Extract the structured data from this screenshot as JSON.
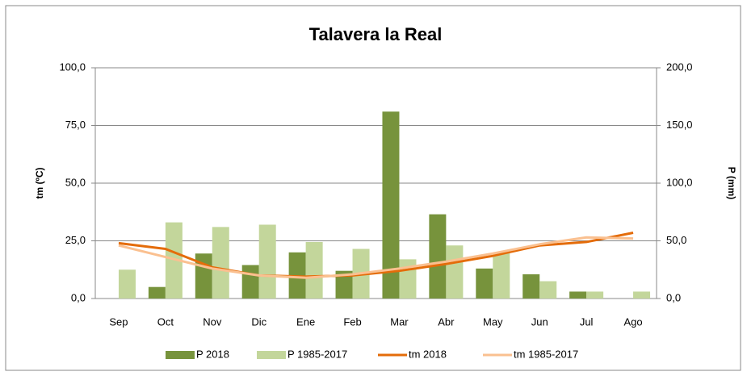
{
  "chart_data": {
    "type": "bar_line",
    "title": "Talavera la Real",
    "y_label": "tm (ºC)",
    "y2_label": "P (mm)",
    "categories": [
      "Sep",
      "Oct",
      "Nov",
      "Dic",
      "Ene",
      "Feb",
      "Mar",
      "Abr",
      "May",
      "Jun",
      "Jul",
      "Ago"
    ],
    "series": [
      {
        "name": "P 2018",
        "type": "bar",
        "axis": "y2",
        "color": "#77933c",
        "values": [
          0,
          10,
          39,
          29,
          40,
          24,
          162,
          73,
          26,
          21,
          6,
          0
        ]
      },
      {
        "name": "P 1985-2017",
        "type": "bar",
        "axis": "y2",
        "color": "#c3d69b",
        "values": [
          25,
          66,
          62,
          64,
          49,
          43,
          34,
          46,
          40,
          15,
          6,
          6
        ]
      },
      {
        "name": "tm 2018",
        "type": "line",
        "color": "#e46c0a",
        "values": [
          24,
          21.5,
          13.5,
          10,
          9.5,
          10,
          12,
          15,
          18.5,
          23,
          24.5,
          28.5
        ]
      },
      {
        "name": "tm 1985-2017",
        "type": "line",
        "color": "#fac090",
        "values": [
          23,
          18,
          13,
          10,
          9,
          10.5,
          13,
          16,
          19.5,
          23.5,
          26.5,
          26
        ]
      }
    ],
    "ylim": [
      0,
      100
    ],
    "yticks": [
      {
        "value": 0,
        "label": "0,0"
      },
      {
        "value": 25,
        "label": "25,0"
      },
      {
        "value": 50,
        "label": "50,0"
      },
      {
        "value": 75,
        "label": "75,0"
      },
      {
        "value": 100,
        "label": "100,0"
      }
    ],
    "y2lim": [
      0,
      200
    ],
    "y2ticks": [
      {
        "value": 0,
        "label": "0,0"
      },
      {
        "value": 50,
        "label": "50,0"
      },
      {
        "value": 100,
        "label": "100,0"
      },
      {
        "value": 150,
        "label": "150,0"
      },
      {
        "value": 200,
        "label": "200,0"
      }
    ],
    "grid": true,
    "legend": "bottom"
  }
}
